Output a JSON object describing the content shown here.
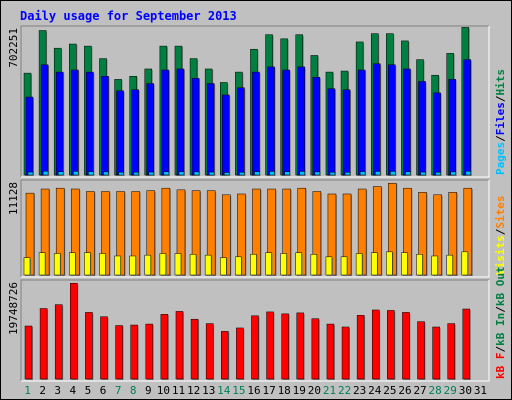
{
  "colors": {
    "frame_bg": "#C0C0C0",
    "plot_bg": "#C0C0C0",
    "hits": "#008040",
    "files": "#0000FF",
    "pages": "#00C0FF",
    "visits": "#FFFF00",
    "sites": "#FF8000",
    "kb": "#FF0000",
    "title": "#0000FF",
    "weekday": "#000000",
    "weekend": "#00805C"
  },
  "chart_data": [
    {
      "type": "bar",
      "panel": "top",
      "title": "Daily usage for September 2013",
      "ylabel_parts": [
        {
          "text": "Pages",
          "color": "#00C0FF"
        },
        {
          "text": "/",
          "color": "#000000"
        },
        {
          "text": "Files",
          "color": "#0000FF"
        },
        {
          "text": "/",
          "color": "#000000"
        },
        {
          "text": "Hits",
          "color": "#008040"
        }
      ],
      "ymax_label": "702251",
      "ylim": [
        0,
        702251
      ],
      "categories": [
        "1",
        "2",
        "3",
        "4",
        "5",
        "6",
        "7",
        "8",
        "9",
        "10",
        "11",
        "12",
        "13",
        "14",
        "15",
        "16",
        "17",
        "18",
        "19",
        "20",
        "21",
        "22",
        "23",
        "24",
        "25",
        "26",
        "27",
        "28",
        "29",
        "30",
        "31"
      ],
      "weekend_days": [
        1,
        7,
        8,
        14,
        15,
        21,
        22,
        28,
        29
      ],
      "series": [
        {
          "name": "Hits",
          "values": [
            490000,
            695000,
            610000,
            630000,
            620000,
            560000,
            460000,
            475000,
            510000,
            620000,
            620000,
            560000,
            510000,
            445000,
            495000,
            605000,
            675000,
            655000,
            675000,
            575000,
            495000,
            500000,
            640000,
            680000,
            680000,
            645000,
            555000,
            480000,
            585000,
            710000,
            0
          ]
        },
        {
          "name": "Files",
          "values": [
            375000,
            530000,
            495000,
            505000,
            495000,
            475000,
            405000,
            410000,
            440000,
            505000,
            510000,
            465000,
            440000,
            385000,
            420000,
            495000,
            520000,
            505000,
            520000,
            470000,
            415000,
            410000,
            505000,
            535000,
            530000,
            510000,
            450000,
            395000,
            460000,
            555000,
            0
          ]
        },
        {
          "name": "Pages",
          "values": [
            14000,
            18000,
            16000,
            17000,
            16000,
            15000,
            13000,
            13000,
            14000,
            16000,
            16000,
            15000,
            14000,
            12000,
            13000,
            16000,
            17000,
            16000,
            17000,
            15000,
            13000,
            13000,
            16000,
            17000,
            17000,
            16000,
            14000,
            13000,
            15000,
            18000,
            0
          ]
        }
      ]
    },
    {
      "type": "bar",
      "panel": "middle",
      "ylabel_parts": [
        {
          "text": "Visits",
          "color": "#FFFF00"
        },
        {
          "text": "/",
          "color": "#000000"
        },
        {
          "text": "Sites",
          "color": "#FF8000"
        }
      ],
      "ymax_label": "11128",
      "ylim": [
        0,
        11128
      ],
      "categories": [
        "1",
        "2",
        "3",
        "4",
        "5",
        "6",
        "7",
        "8",
        "9",
        "10",
        "11",
        "12",
        "13",
        "14",
        "15",
        "16",
        "17",
        "18",
        "19",
        "20",
        "21",
        "22",
        "23",
        "24",
        "25",
        "26",
        "27",
        "28",
        "29",
        "30",
        "31"
      ],
      "series": [
        {
          "name": "Sites",
          "values": [
            9900,
            10400,
            10500,
            10400,
            10100,
            10100,
            10100,
            10100,
            10200,
            10500,
            10300,
            10200,
            10200,
            9700,
            9800,
            10400,
            10400,
            10400,
            10500,
            10100,
            9800,
            9800,
            10400,
            10700,
            11100,
            10500,
            10000,
            9700,
            10000,
            10500,
            0
          ]
        },
        {
          "name": "Visits",
          "values": [
            2100,
            2700,
            2600,
            2700,
            2700,
            2600,
            2300,
            2300,
            2400,
            2600,
            2600,
            2500,
            2400,
            2100,
            2200,
            2500,
            2700,
            2600,
            2700,
            2500,
            2200,
            2200,
            2600,
            2700,
            2800,
            2700,
            2500,
            2300,
            2400,
            2800,
            0
          ]
        }
      ]
    },
    {
      "type": "bar",
      "panel": "bottom",
      "ylabel_parts": [
        {
          "text": "kB F",
          "color": "#FF0000"
        },
        {
          "text": "/",
          "color": "#000000"
        },
        {
          "text": "kB In",
          "color": "#008040"
        },
        {
          "text": "/",
          "color": "#000000"
        },
        {
          "text": "kB Out",
          "color": "#008040"
        }
      ],
      "ymax_label": "19748726",
      "ylim": [
        0,
        19748726
      ],
      "categories": [
        "1",
        "2",
        "3",
        "4",
        "5",
        "6",
        "7",
        "8",
        "9",
        "10",
        "11",
        "12",
        "13",
        "14",
        "15",
        "16",
        "17",
        "18",
        "19",
        "20",
        "21",
        "22",
        "23",
        "24",
        "25",
        "26",
        "27",
        "28",
        "29",
        "30",
        "31"
      ],
      "series": [
        {
          "name": "kB F",
          "values": [
            10900000,
            14500000,
            15300000,
            19700000,
            13700000,
            12800000,
            11000000,
            11100000,
            11300000,
            13300000,
            13900000,
            12300000,
            11400000,
            9800000,
            10500000,
            13000000,
            13800000,
            13400000,
            13600000,
            12400000,
            11300000,
            10700000,
            13100000,
            14200000,
            14100000,
            13700000,
            11800000,
            10700000,
            11400000,
            14400000,
            0
          ]
        }
      ]
    }
  ]
}
